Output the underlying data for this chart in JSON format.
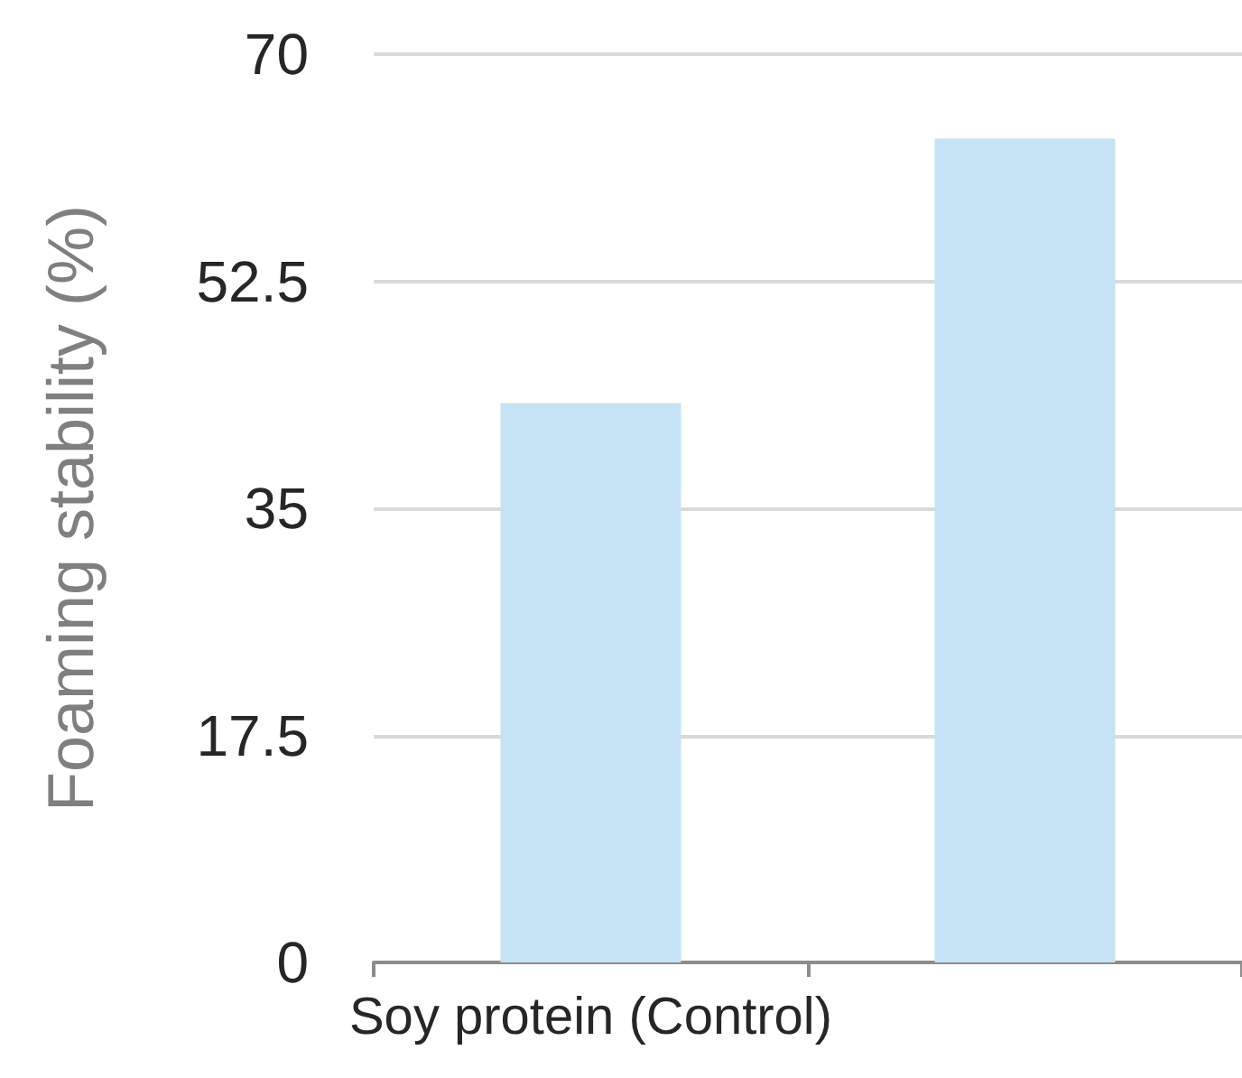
{
  "chart_data": {
    "type": "bar",
    "ylabel": "Foaming stability (%)",
    "categories": [
      "Soy protein (Control)",
      null
    ],
    "values": [
      43.1,
      63.5
    ],
    "color": "#c5e3f4",
    "ylim": [
      0,
      70
    ],
    "yticks": [
      0,
      17.5,
      35,
      52.5,
      70
    ],
    "grid": "y"
  }
}
